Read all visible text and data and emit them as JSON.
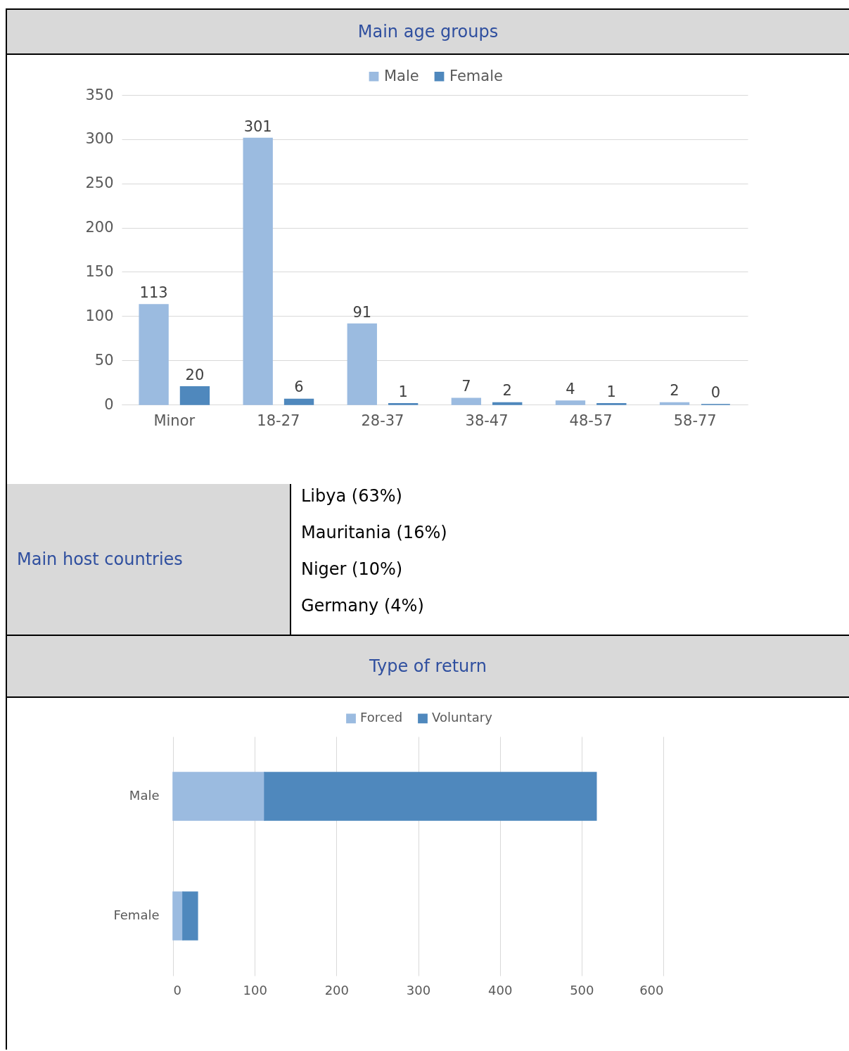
{
  "chart_data": [
    {
      "type": "bar",
      "title": "Main age groups",
      "categories": [
        "Minor",
        "18-27",
        "28-37",
        "38-47",
        "48-57",
        "58-77"
      ],
      "series": [
        {
          "name": "Male",
          "color": "#9bbbe0",
          "values": [
            113,
            301,
            91,
            7,
            4,
            2
          ]
        },
        {
          "name": "Female",
          "color": "#4f88bd",
          "values": [
            20,
            6,
            1,
            2,
            1,
            0
          ]
        }
      ],
      "ylim": [
        0,
        350
      ],
      "yticks": [
        0,
        50,
        100,
        150,
        200,
        250,
        300,
        350
      ],
      "grid": "y",
      "data_labels": true,
      "legend": "top"
    },
    {
      "type": "other",
      "title": "Main host countries",
      "annotations": [
        "Libya (63%)",
        "Mauritania (16%)",
        "Niger (10%)",
        "Germany (4%)"
      ]
    },
    {
      "type": "bar",
      "title": "Type of return",
      "orientation": "horizontal",
      "stacked": true,
      "categories": [
        "Male",
        "Female"
      ],
      "series": [
        {
          "name": "Forced",
          "color": "#9bbbe0",
          "values": [
            112,
            12
          ]
        },
        {
          "name": "Voluntary",
          "color": "#4f88bd",
          "values": [
            406,
            18
          ]
        }
      ],
      "xlim": [
        0,
        600
      ],
      "xticks": [
        0,
        100,
        200,
        300,
        400,
        500,
        600
      ],
      "grid": "x",
      "legend": "top"
    }
  ]
}
